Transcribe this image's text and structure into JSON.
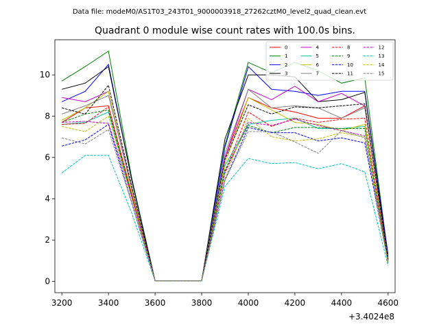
{
  "chart_data": {
    "type": "line",
    "supertitle": "Data file: modeM0/AS1T03_243T01_9000003918_27262cztM0_level2_quad_clean.evt",
    "title": "Quadrant 0 module wise count rates with 100.0s bins.",
    "xlabel": "",
    "ylabel": "",
    "x_offset_label": "+3.4024e8",
    "x": [
      3200,
      3300,
      3400,
      3500,
      3600,
      3700,
      3800,
      3900,
      4000,
      4100,
      4200,
      4300,
      4400,
      4500,
      4600
    ],
    "xlim": [
      3170,
      4630
    ],
    "ylim": [
      -0.55,
      11.7
    ],
    "xticks": [
      3200,
      3400,
      3600,
      3800,
      4000,
      4200,
      4400,
      4600
    ],
    "yticks": [
      0,
      2,
      4,
      6,
      8,
      10
    ],
    "grid": false,
    "legend_position": "top-right",
    "legend_columns": 4,
    "series": [
      {
        "name": "0",
        "color": "#ff0000",
        "dash": "solid",
        "values": [
          7.7,
          8.4,
          8.5,
          4.2,
          0.02,
          0.02,
          0.02,
          6.0,
          8.9,
          8.4,
          8.2,
          7.9,
          7.9,
          8.5,
          1.0
        ]
      },
      {
        "name": "1",
        "color": "#008000",
        "dash": "solid",
        "values": [
          9.7,
          10.4,
          11.15,
          5.0,
          0.02,
          0.02,
          0.02,
          6.6,
          10.6,
          10.1,
          10.6,
          10.2,
          9.6,
          9.85,
          1.2
        ]
      },
      {
        "name": "2",
        "color": "#0000ff",
        "dash": "solid",
        "values": [
          8.7,
          9.2,
          10.5,
          4.9,
          0.02,
          0.02,
          0.02,
          6.5,
          10.4,
          9.3,
          9.2,
          9.0,
          9.2,
          9.2,
          1.3
        ]
      },
      {
        "name": "3",
        "color": "#000000",
        "dash": "solid",
        "values": [
          9.3,
          9.6,
          10.4,
          4.9,
          0.02,
          0.02,
          0.02,
          6.9,
          10.0,
          10.0,
          9.9,
          8.7,
          8.8,
          9.15,
          1.1
        ]
      },
      {
        "name": "4",
        "color": "#c000c0",
        "dash": "solid",
        "values": [
          8.9,
          8.7,
          9.2,
          4.5,
          0.02,
          0.02,
          0.02,
          6.0,
          9.3,
          8.8,
          9.45,
          8.7,
          9.1,
          8.5,
          1.1
        ]
      },
      {
        "name": "5",
        "color": "#00c0a0",
        "dash": "solid",
        "values": [
          7.6,
          7.7,
          8.2,
          4.1,
          0.02,
          0.02,
          0.02,
          5.6,
          7.6,
          7.8,
          7.9,
          7.4,
          7.4,
          7.5,
          1.0
        ]
      },
      {
        "name": "6",
        "color": "#c0c000",
        "dash": "solid",
        "values": [
          7.8,
          8.4,
          9.2,
          4.4,
          0.02,
          0.02,
          0.02,
          5.7,
          8.9,
          8.3,
          7.7,
          7.6,
          7.3,
          7.6,
          0.9
        ]
      },
      {
        "name": "7",
        "color": "#808080",
        "dash": "solid",
        "values": [
          8.1,
          8.5,
          9.0,
          4.5,
          0.02,
          0.02,
          0.02,
          6.2,
          9.3,
          8.4,
          8.5,
          8.4,
          7.9,
          8.4,
          1.1
        ]
      },
      {
        "name": "8",
        "color": "#ff0000",
        "dash": "dashed",
        "values": [
          7.6,
          7.65,
          8.45,
          4.2,
          0.02,
          0.02,
          0.02,
          5.3,
          8.2,
          7.5,
          7.9,
          7.7,
          7.85,
          7.9,
          0.9
        ]
      },
      {
        "name": "9",
        "color": "#008000",
        "dash": "dashed",
        "values": [
          7.7,
          8.1,
          8.3,
          4.1,
          0.02,
          0.02,
          0.02,
          5.4,
          7.55,
          7.2,
          7.45,
          7.45,
          7.4,
          7.4,
          0.95
        ]
      },
      {
        "name": "10",
        "color": "#0000ff",
        "dash": "dashed",
        "values": [
          6.55,
          6.85,
          7.6,
          3.8,
          0.02,
          0.02,
          0.02,
          4.9,
          7.45,
          7.2,
          7.2,
          6.8,
          6.95,
          6.7,
          0.9
        ]
      },
      {
        "name": "11",
        "color": "#000000",
        "dash": "dashed",
        "values": [
          8.4,
          8.1,
          9.5,
          4.6,
          0.02,
          0.02,
          0.02,
          5.9,
          8.55,
          8.1,
          8.45,
          8.4,
          8.5,
          8.6,
          1.05
        ]
      },
      {
        "name": "12",
        "color": "#c000c0",
        "dash": "dashed",
        "values": [
          7.7,
          7.75,
          7.65,
          4.1,
          0.02,
          0.02,
          0.02,
          5.25,
          7.7,
          7.55,
          7.85,
          7.55,
          7.3,
          7.05,
          0.9
        ]
      },
      {
        "name": "13",
        "color": "#00c0c0",
        "dash": "dashed",
        "values": [
          5.25,
          6.1,
          6.1,
          3.3,
          0.02,
          0.02,
          0.02,
          4.6,
          5.95,
          5.7,
          5.75,
          5.45,
          5.7,
          5.3,
          0.75
        ]
      },
      {
        "name": "14",
        "color": "#c0c000",
        "dash": "dashed",
        "values": [
          7.5,
          7.25,
          8.0,
          4.0,
          0.02,
          0.02,
          0.02,
          5.0,
          7.9,
          7.0,
          6.8,
          6.9,
          7.2,
          7.0,
          0.85
        ]
      },
      {
        "name": "15",
        "color": "#808080",
        "dash": "dashed",
        "values": [
          6.95,
          6.65,
          7.35,
          3.8,
          0.02,
          0.02,
          0.02,
          4.9,
          7.25,
          7.25,
          6.75,
          6.2,
          7.3,
          6.95,
          0.95
        ]
      }
    ]
  }
}
